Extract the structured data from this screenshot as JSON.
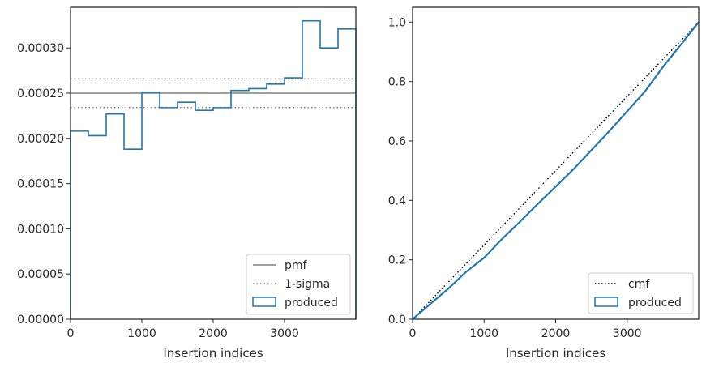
{
  "chart_data": [
    {
      "type": "histogram",
      "xlabel": "Insertion indices",
      "ylabel": "",
      "xlim": [
        0,
        4000
      ],
      "ylim": [
        0,
        0.000345
      ],
      "xticks": [
        0,
        1000,
        2000,
        3000
      ],
      "xtick_labels": [
        "0",
        "1000",
        "2000",
        "3000"
      ],
      "yticks": [
        0,
        5e-05,
        0.0001,
        0.00015,
        0.0002,
        0.00025,
        0.0003
      ],
      "ytick_labels": [
        "0.00000",
        "0.00005",
        "0.00010",
        "0.00015",
        "0.00020",
        "0.00025",
        "0.00030"
      ],
      "grid": false,
      "legend_position": "lower right",
      "pmf": {
        "name": "pmf",
        "value": 0.00025,
        "color": "#808080"
      },
      "sigma": {
        "name": "1-sigma",
        "values": [
          0.0002342,
          0.0002658
        ],
        "color": "#808080"
      },
      "produced": {
        "name": "produced",
        "color": "#1f77b4",
        "bin_edges": [
          0,
          250,
          500,
          750,
          1000,
          1250,
          1500,
          1750,
          2000,
          2250,
          2500,
          2750,
          3000,
          3250,
          3500,
          3750,
          4000
        ],
        "values": [
          0.000208,
          0.000203,
          0.000227,
          0.000188,
          0.000251,
          0.000234,
          0.00024,
          0.000231,
          0.000234,
          0.000253,
          0.000255,
          0.00026,
          0.000267,
          0.00033,
          0.0003,
          0.000321
        ]
      }
    },
    {
      "type": "line",
      "xlabel": "Insertion indices",
      "ylabel": "",
      "xlim": [
        0,
        4000
      ],
      "ylim": [
        0,
        1.05
      ],
      "xticks": [
        0,
        1000,
        2000,
        3000
      ],
      "xtick_labels": [
        "0",
        "1000",
        "2000",
        "3000"
      ],
      "yticks": [
        0,
        0.2,
        0.4,
        0.6,
        0.8,
        1.0
      ],
      "ytick_labels": [
        "0.0",
        "0.2",
        "0.4",
        "0.6",
        "0.8",
        "1.0"
      ],
      "grid": false,
      "legend_position": "lower right",
      "cmf": {
        "name": "cmf",
        "x": [
          0,
          4000
        ],
        "y": [
          0,
          1
        ],
        "color": "#000000"
      },
      "produced": {
        "name": "produced",
        "color": "#1f77b4",
        "x": [
          0,
          250,
          500,
          750,
          1000,
          1250,
          1500,
          1750,
          2000,
          2250,
          2500,
          2750,
          3000,
          3250,
          3500,
          3750,
          4000
        ],
        "y": [
          0,
          0.052,
          0.103,
          0.16,
          0.207,
          0.27,
          0.328,
          0.388,
          0.446,
          0.505,
          0.569,
          0.633,
          0.7,
          0.767,
          0.849,
          0.924,
          1.0
        ]
      }
    }
  ]
}
